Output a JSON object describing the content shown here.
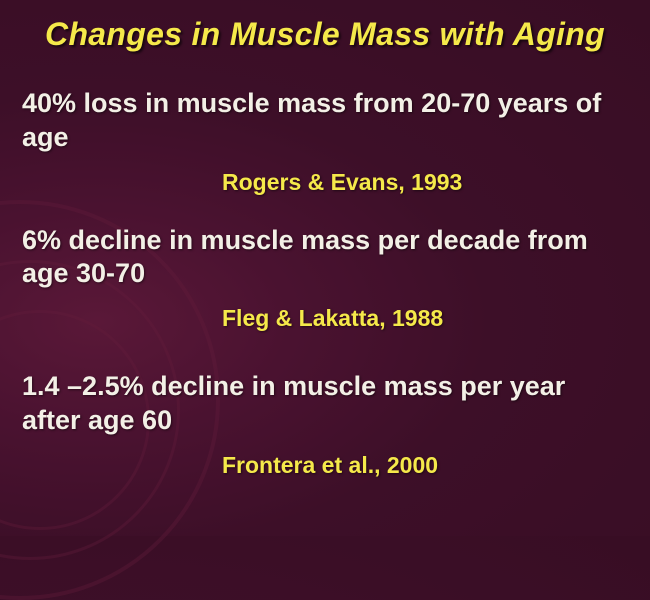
{
  "colors": {
    "title": "#f5e94a",
    "point": "#f3f0e6",
    "citation": "#f5e94a"
  },
  "title": "Changes in Muscle Mass with Aging",
  "bullets": [
    {
      "text": "40% loss in muscle mass from 20-70 years of age",
      "citation": "Rogers & Evans, 1993"
    },
    {
      "text": "6% decline in muscle mass per decade from age 30-70",
      "citation": "Fleg & Lakatta, 1988"
    },
    {
      "text": "1.4 –2.5% decline in muscle mass per year after age 60",
      "citation": "Frontera et al., 2000"
    }
  ]
}
